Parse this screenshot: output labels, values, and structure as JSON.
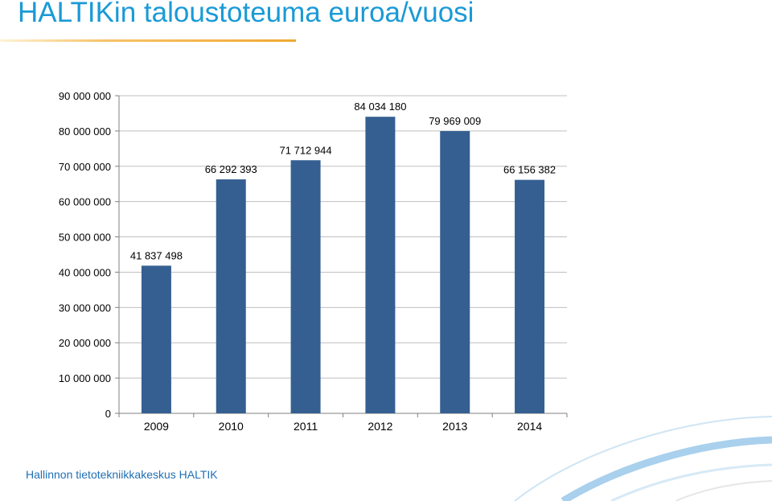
{
  "header": {
    "title": "HALTIKin taloustoteuma euroa/vuosi"
  },
  "footer": {
    "text": "Hallinnon tietotekniikkakeskus HALTIK"
  },
  "colors": {
    "title": "#1a9ad6",
    "bar": "#355f91",
    "footer": "#1f6fb4",
    "swoosh": "#b8d8ee"
  },
  "chart_data": {
    "type": "bar",
    "categories": [
      "2009",
      "2010",
      "2011",
      "2012",
      "2013",
      "2014"
    ],
    "values": [
      41837498,
      66292393,
      71712944,
      84034180,
      79969009,
      66156382
    ],
    "data_labels": [
      "41 837 498",
      "66 292 393",
      "71 712 944",
      "84 034 180",
      "79 969 009",
      "66 156 382"
    ],
    "y_tick_values": [
      0,
      10000000,
      20000000,
      30000000,
      40000000,
      50000000,
      60000000,
      70000000,
      80000000,
      90000000
    ],
    "y_tick_labels": [
      "0",
      "10 000 000",
      "20 000 000",
      "30 000 000",
      "40 000 000",
      "50 000 000",
      "60 000 000",
      "70 000 000",
      "80 000 000",
      "90 000 000"
    ],
    "ylim": [
      0,
      90000000
    ],
    "grid": true,
    "legend": "none"
  }
}
